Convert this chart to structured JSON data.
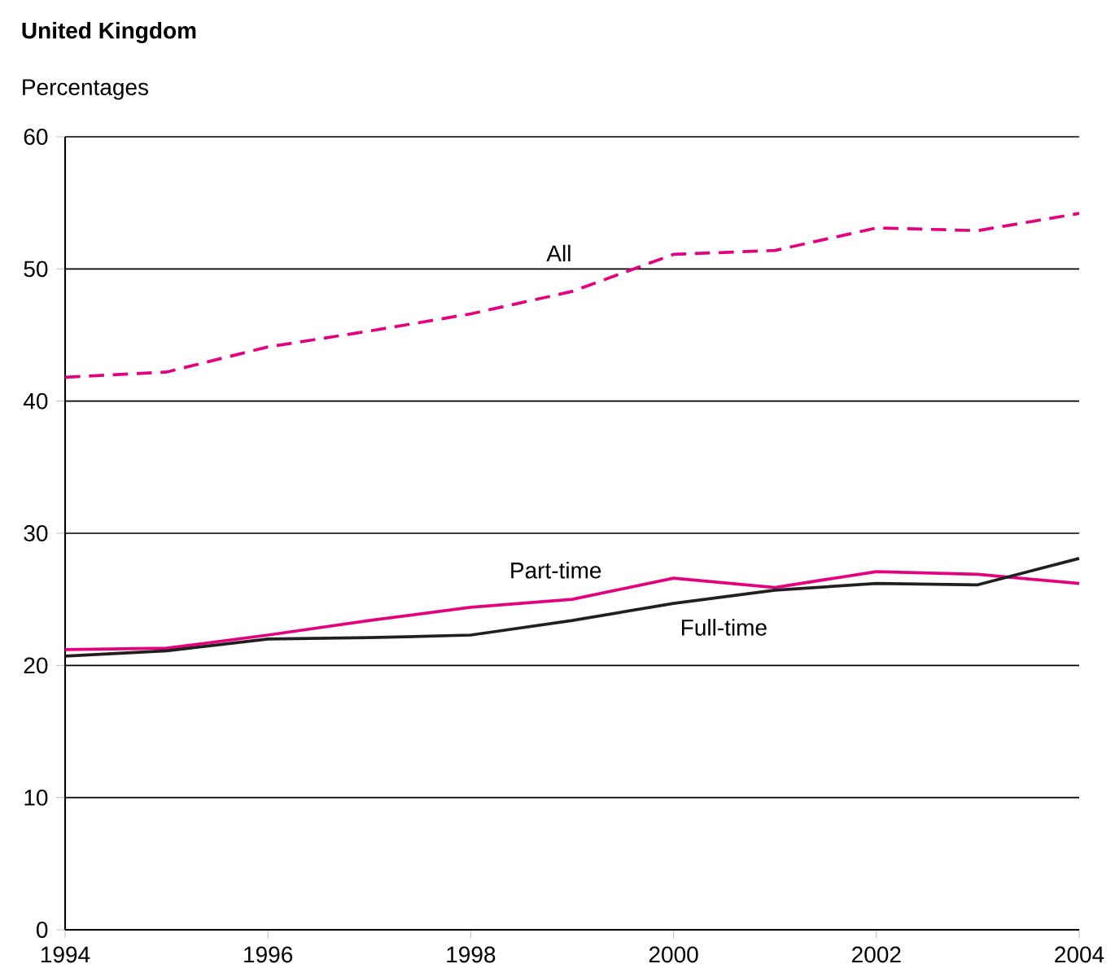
{
  "chart_data": {
    "type": "line",
    "title": "United Kingdom",
    "ylabel": "Percentages",
    "x": [
      1994,
      1995,
      1996,
      1997,
      1998,
      1999,
      2000,
      2001,
      2002,
      2003,
      2004
    ],
    "series": [
      {
        "name": "All",
        "color": "#e5007e",
        "line_style": "dashed",
        "values": [
          41.8,
          42.2,
          44.1,
          45.3,
          46.6,
          48.3,
          51.1,
          51.4,
          53.1,
          52.9,
          54.2
        ]
      },
      {
        "name": "Part-time",
        "color": "#e5007e",
        "line_style": "solid",
        "values": [
          21.2,
          21.3,
          22.3,
          23.4,
          24.4,
          25.0,
          26.6,
          25.9,
          27.1,
          26.9,
          26.2
        ]
      },
      {
        "name": "Full-time",
        "color": "#231f20",
        "line_style": "solid",
        "values": [
          20.7,
          21.1,
          22.0,
          22.1,
          22.3,
          23.4,
          24.7,
          25.7,
          26.2,
          26.1,
          28.1
        ]
      }
    ],
    "xlim": [
      1994,
      2004
    ],
    "xticks": [
      1994,
      1996,
      1998,
      2000,
      2002,
      2004
    ],
    "ylim": [
      0,
      60
    ],
    "yticks": [
      0,
      10,
      20,
      30,
      40,
      50,
      60
    ],
    "grid": "y",
    "marker": "none"
  }
}
